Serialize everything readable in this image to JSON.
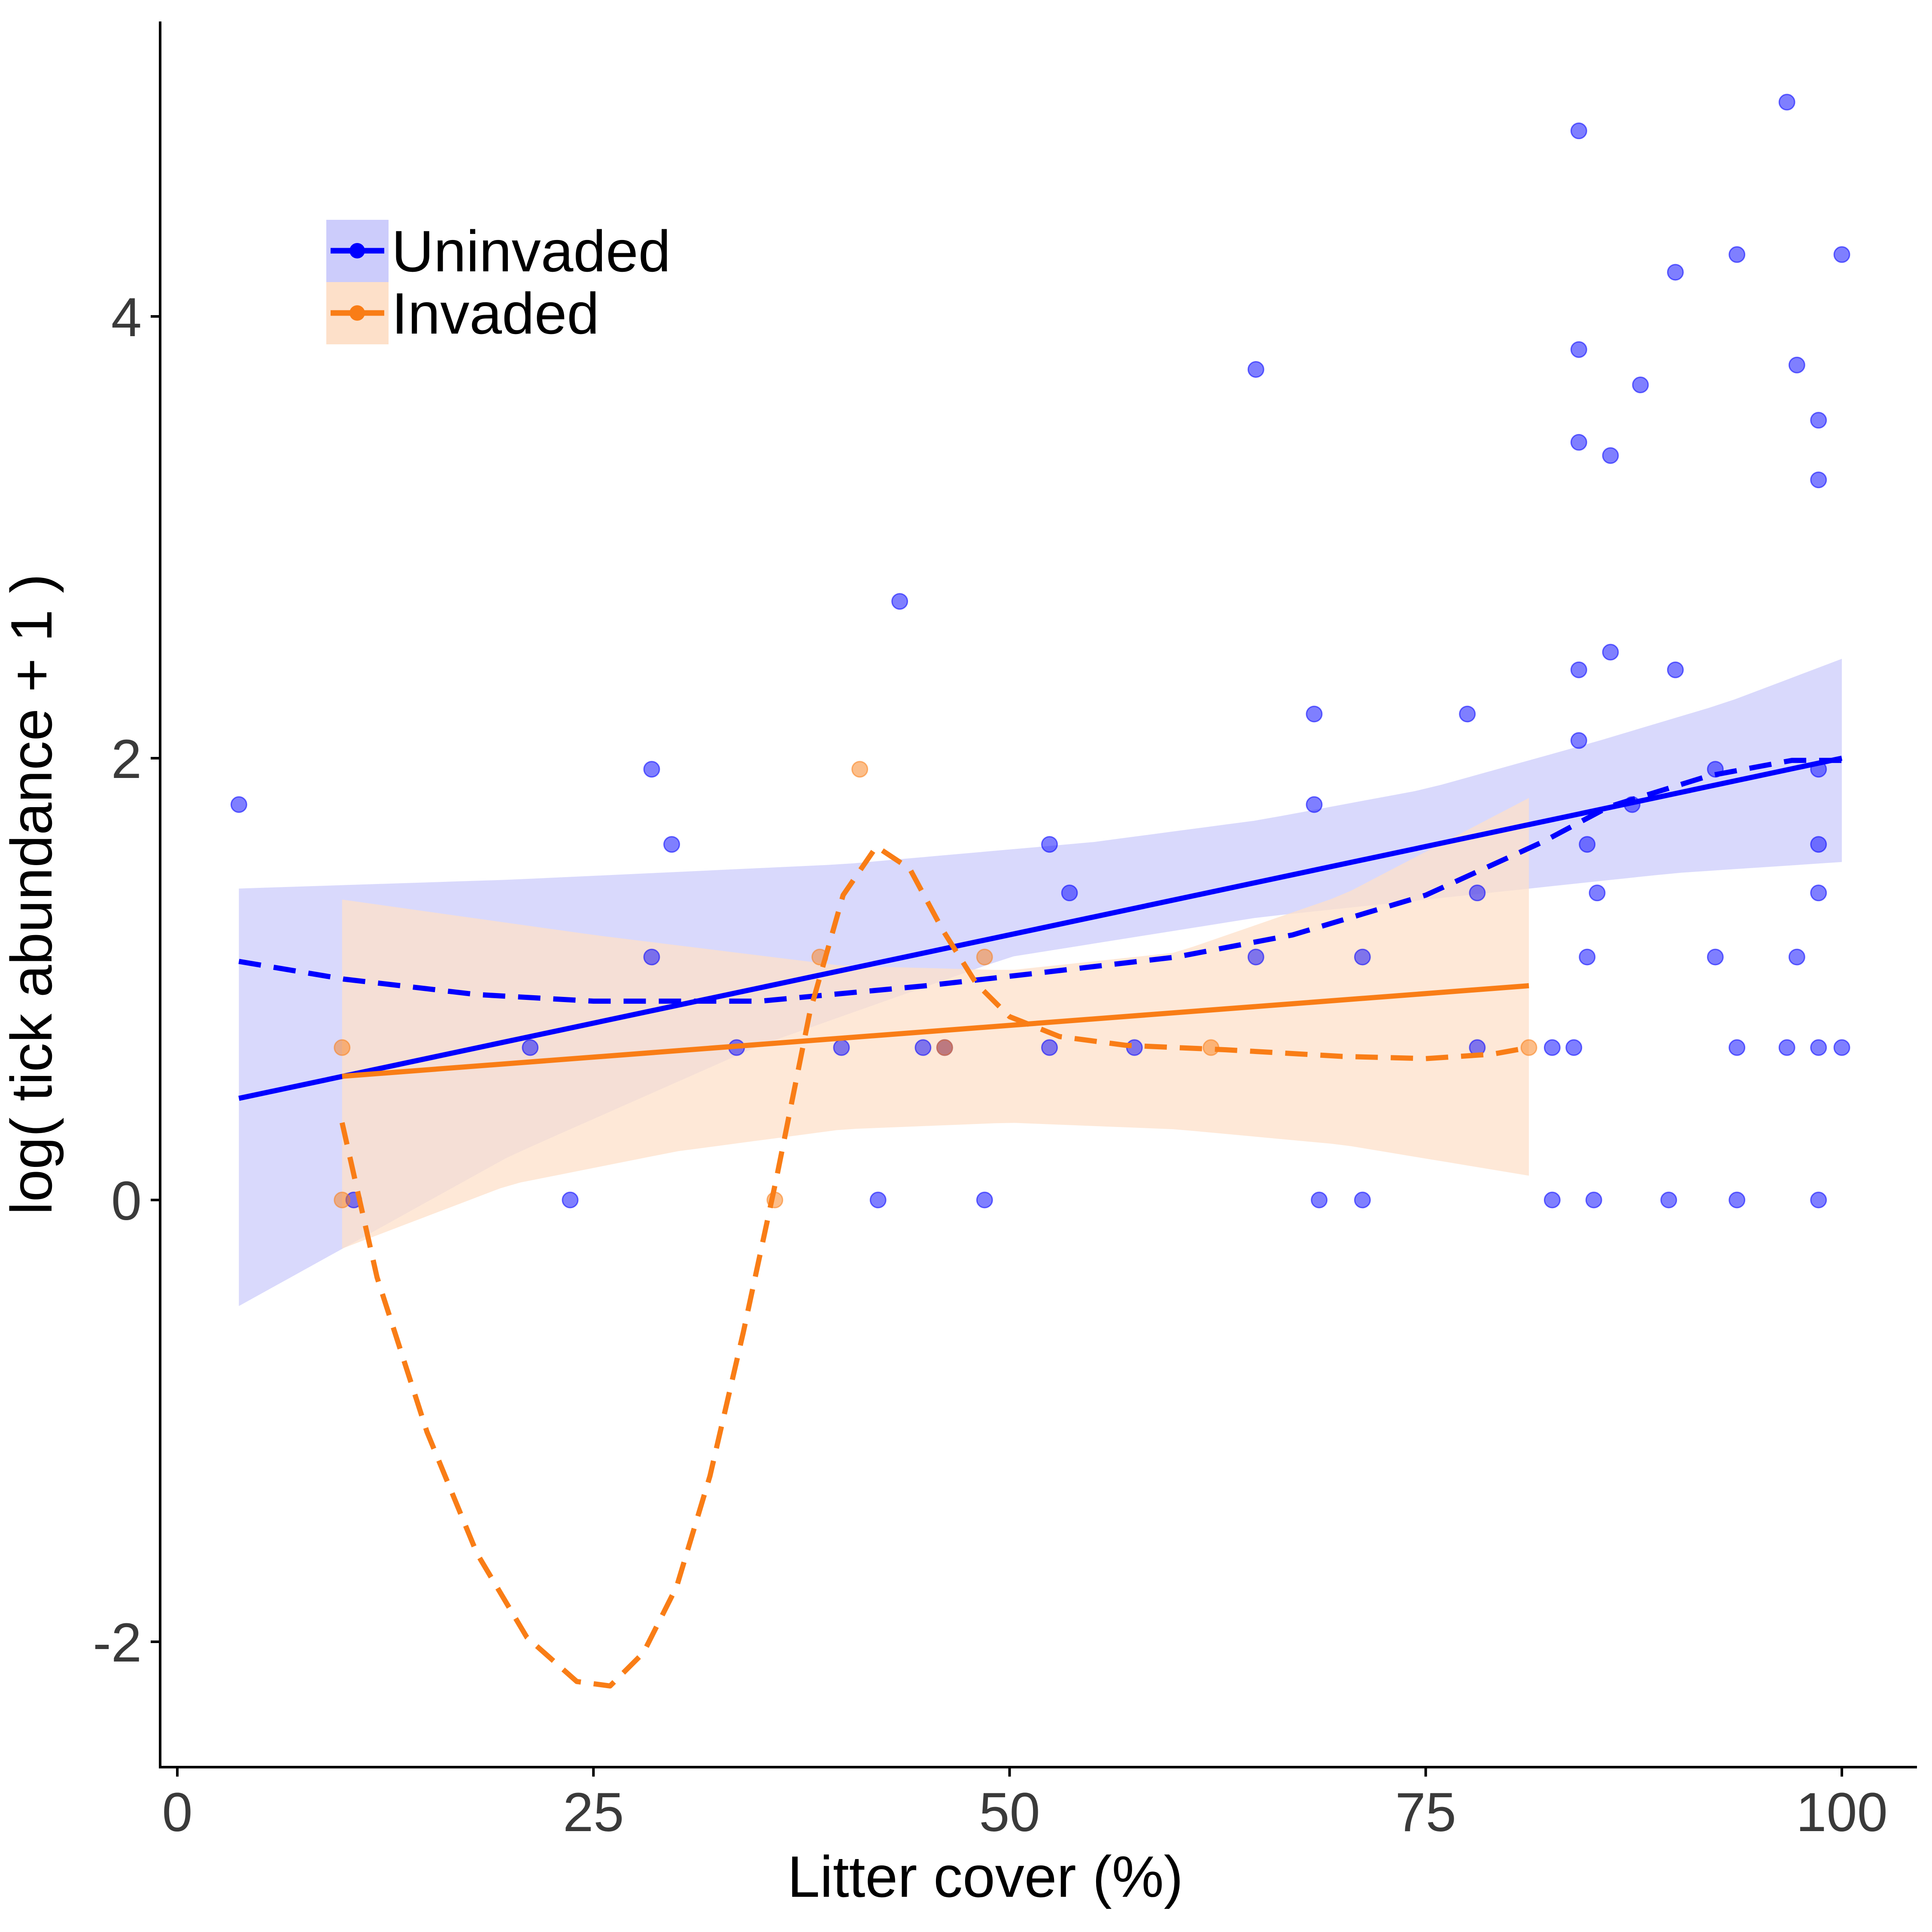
{
  "chart_data": {
    "type": "scatter",
    "title": "",
    "xlabel": "Litter cover (%)",
    "ylabel": "log( tick abundance + 1 )",
    "xlim": [
      -1,
      104
    ],
    "ylim": [
      -2.58,
      5.32
    ],
    "xticks": [
      0,
      25,
      50,
      75,
      100
    ],
    "xtick_labels": [
      "0",
      "25",
      "50",
      "75",
      "100"
    ],
    "yticks": [
      -2,
      0,
      2,
      4
    ],
    "ytick_labels": [
      "-2",
      "0",
      "2",
      "4"
    ],
    "grid": false,
    "legend_position": "top-left",
    "series": [
      {
        "name": "Uninvaded",
        "color": "#0000ff",
        "band_color": "#ccccfb",
        "points": [
          [
            3.7,
            1.79
          ],
          [
            10.6,
            0
          ],
          [
            21.2,
            0.69
          ],
          [
            23.6,
            0
          ],
          [
            28.5,
            1.95
          ],
          [
            28.5,
            1.1
          ],
          [
            29.7,
            1.61
          ],
          [
            33.6,
            0.69
          ],
          [
            39.9,
            0.69
          ],
          [
            42.1,
            0
          ],
          [
            43.4,
            2.71
          ],
          [
            44.8,
            0.69
          ],
          [
            46.1,
            0.69
          ],
          [
            48.5,
            0
          ],
          [
            52.4,
            1.61
          ],
          [
            52.4,
            0.69
          ],
          [
            53.6,
            1.39
          ],
          [
            57.5,
            0.69
          ],
          [
            64.8,
            3.76
          ],
          [
            64.8,
            1.1
          ],
          [
            68.3,
            2.2
          ],
          [
            68.3,
            1.79
          ],
          [
            68.6,
            0
          ],
          [
            71.2,
            1.1
          ],
          [
            71.2,
            0
          ],
          [
            77.5,
            2.2
          ],
          [
            78.1,
            1.39
          ],
          [
            78.1,
            0.69
          ],
          [
            82.6,
            0.69
          ],
          [
            82.6,
            0
          ],
          [
            83.9,
            0.69
          ],
          [
            84.2,
            4.84
          ],
          [
            84.2,
            3.85
          ],
          [
            84.2,
            3.43
          ],
          [
            84.2,
            2.4
          ],
          [
            84.2,
            2.08
          ],
          [
            84.7,
            1.61
          ],
          [
            84.7,
            1.1
          ],
          [
            85.1,
            0
          ],
          [
            85.3,
            1.39
          ],
          [
            86.1,
            3.37
          ],
          [
            86.1,
            2.48
          ],
          [
            87.4,
            1.79
          ],
          [
            87.9,
            3.69
          ],
          [
            89.6,
            0
          ],
          [
            90.0,
            4.2
          ],
          [
            90.0,
            2.4
          ],
          [
            92.4,
            1.95
          ],
          [
            92.4,
            1.1
          ],
          [
            93.7,
            4.28
          ],
          [
            93.7,
            0.69
          ],
          [
            93.7,
            0
          ],
          [
            96.7,
            4.97
          ],
          [
            96.7,
            0.69
          ],
          [
            97.3,
            3.78
          ],
          [
            97.3,
            1.1
          ],
          [
            98.6,
            3.53
          ],
          [
            98.6,
            3.26
          ],
          [
            98.6,
            1.95
          ],
          [
            98.6,
            1.61
          ],
          [
            98.6,
            1.39
          ],
          [
            98.6,
            0.69
          ],
          [
            98.6,
            0
          ],
          [
            100,
            4.28
          ],
          [
            100,
            0.69
          ]
        ],
        "linear_fit": [
          [
            3.7,
            0.46
          ],
          [
            100,
            2.0
          ]
        ],
        "ci_upper": [
          [
            3.7,
            1.41
          ],
          [
            20,
            1.45
          ],
          [
            40,
            1.52
          ],
          [
            55,
            1.62
          ],
          [
            65,
            1.72
          ],
          [
            75,
            1.86
          ],
          [
            85,
            2.07
          ],
          [
            93,
            2.25
          ],
          [
            100,
            2.45
          ]
        ],
        "ci_lower": [
          [
            3.7,
            -0.48
          ],
          [
            20,
            0.2
          ],
          [
            35,
            0.7
          ],
          [
            50,
            1.1
          ],
          [
            65,
            1.28
          ],
          [
            80,
            1.4
          ],
          [
            90,
            1.48
          ],
          [
            100,
            1.53
          ]
        ],
        "smooth_fit": [
          [
            3.7,
            1.08
          ],
          [
            10,
            1.0
          ],
          [
            18,
            0.93
          ],
          [
            25,
            0.9
          ],
          [
            35,
            0.9
          ],
          [
            45,
            0.97
          ],
          [
            52,
            1.03
          ],
          [
            60,
            1.1
          ],
          [
            67,
            1.2
          ],
          [
            75,
            1.38
          ],
          [
            82,
            1.62
          ],
          [
            86,
            1.78
          ],
          [
            92,
            1.92
          ],
          [
            97,
            1.99
          ],
          [
            100,
            1.99
          ]
        ]
      },
      {
        "name": "Invaded",
        "color": "#f97d16",
        "band_color": "#fde0c9",
        "points": [
          [
            9.9,
            0.69
          ],
          [
            9.9,
            0
          ],
          [
            35.9,
            0
          ],
          [
            38.6,
            1.1
          ],
          [
            41.0,
            1.95
          ],
          [
            46.1,
            0.69
          ],
          [
            48.5,
            1.1
          ],
          [
            62.1,
            0.69
          ],
          [
            81.2,
            0.69
          ]
        ],
        "linear_fit": [
          [
            9.9,
            0.56
          ],
          [
            81.2,
            0.97
          ]
        ],
        "ci_upper": [
          [
            9.9,
            1.36
          ],
          [
            25,
            1.2
          ],
          [
            40,
            1.06
          ],
          [
            50,
            1.04
          ],
          [
            60,
            1.12
          ],
          [
            70,
            1.38
          ],
          [
            81.2,
            1.82
          ]
        ],
        "ci_lower": [
          [
            9.9,
            -0.22
          ],
          [
            20,
            0.07
          ],
          [
            30,
            0.22
          ],
          [
            40,
            0.32
          ],
          [
            50,
            0.35
          ],
          [
            60,
            0.32
          ],
          [
            70,
            0.25
          ],
          [
            81.2,
            0.11
          ]
        ],
        "smooth_fit": [
          [
            9.9,
            0.35
          ],
          [
            12,
            -0.35
          ],
          [
            15,
            -1.05
          ],
          [
            18,
            -1.6
          ],
          [
            21,
            -1.98
          ],
          [
            24,
            -2.18
          ],
          [
            26,
            -2.2
          ],
          [
            28,
            -2.05
          ],
          [
            30,
            -1.75
          ],
          [
            32,
            -1.25
          ],
          [
            34,
            -0.6
          ],
          [
            36,
            0.1
          ],
          [
            38,
            0.85
          ],
          [
            40,
            1.38
          ],
          [
            42,
            1.6
          ],
          [
            44,
            1.5
          ],
          [
            46,
            1.22
          ],
          [
            48,
            0.98
          ],
          [
            50,
            0.83
          ],
          [
            53,
            0.74
          ],
          [
            57,
            0.7
          ],
          [
            63,
            0.68
          ],
          [
            70,
            0.65
          ],
          [
            75,
            0.64
          ],
          [
            79,
            0.66
          ],
          [
            81.2,
            0.69
          ]
        ]
      }
    ]
  }
}
